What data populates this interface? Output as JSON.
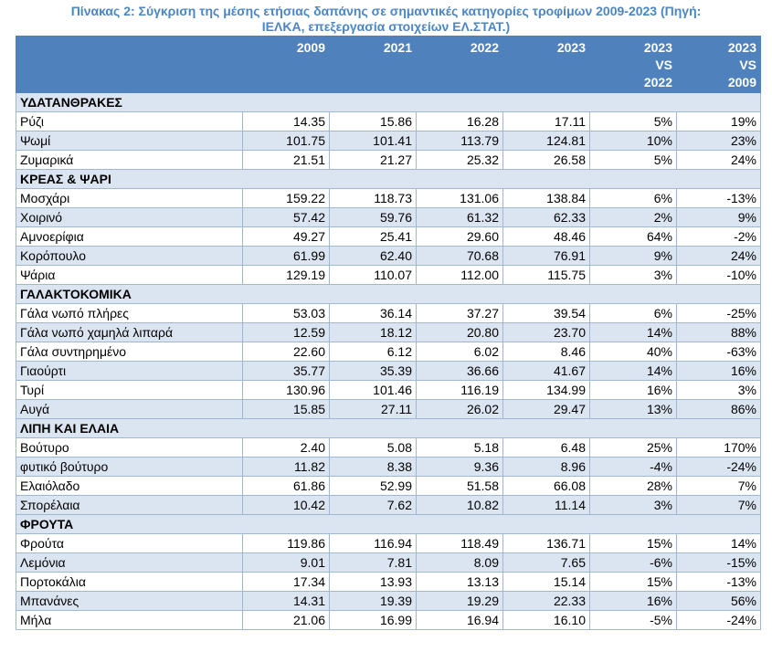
{
  "caption": {
    "line1": "Πίνακας 2: Σύγκριση της μέσης ετήσιας δαπάνης σε σημαντικές κατηγορίες τροφίμων 2009-2023 (Πηγή:",
    "line2": "ΙΕΛΚΑ, επεξεργασία στοιχείων ΕΛ.ΣΤΑΤ.)"
  },
  "headers": {
    "y2009": "2009",
    "y2021": "2021",
    "y2022": "2022",
    "y2023": "2023",
    "vs2022": [
      "2023",
      "VS",
      "2022"
    ],
    "vs2009": [
      "2023",
      "VS",
      "2009"
    ]
  },
  "rows": [
    {
      "type": "cat",
      "label": "ΥΔΑΤΑΝΘΡΑΚΕΣ"
    },
    {
      "type": "item",
      "label": "Ρύζι",
      "v2009": "14.35",
      "v2021": "15.86",
      "v2022": "16.28",
      "v2023": "17.11",
      "vs2022": "5%",
      "vs2009": "19%"
    },
    {
      "type": "item",
      "label": "Ψωμί",
      "v2009": "101.75",
      "v2021": "101.41",
      "v2022": "113.79",
      "v2023": "124.81",
      "vs2022": "10%",
      "vs2009": "23%"
    },
    {
      "type": "item",
      "label": "Ζυμαρικά",
      "v2009": "21.51",
      "v2021": "21.27",
      "v2022": "25.32",
      "v2023": "26.58",
      "vs2022": "5%",
      "vs2009": "24%"
    },
    {
      "type": "cat",
      "label": "ΚΡΕΑΣ & ΨΑΡΙ"
    },
    {
      "type": "item",
      "label": "Μοσχάρι",
      "v2009": "159.22",
      "v2021": "118.73",
      "v2022": "131.06",
      "v2023": "138.84",
      "vs2022": "6%",
      "vs2009": "-13%"
    },
    {
      "type": "item",
      "label": "Χοιρινό",
      "v2009": "57.42",
      "v2021": "59.76",
      "v2022": "61.32",
      "v2023": "62.33",
      "vs2022": "2%",
      "vs2009": "9%"
    },
    {
      "type": "item",
      "label": "Αμνοερίφια",
      "v2009": "49.27",
      "v2021": "25.41",
      "v2022": "29.60",
      "v2023": "48.46",
      "vs2022": "64%",
      "vs2009": "-2%"
    },
    {
      "type": "item",
      "label": "Κορόπουλο",
      "v2009": "61.99",
      "v2021": "62.40",
      "v2022": "70.68",
      "v2023": "76.91",
      "vs2022": "9%",
      "vs2009": "24%"
    },
    {
      "type": "item",
      "label": "Ψάρια",
      "v2009": "129.19",
      "v2021": "110.07",
      "v2022": "112.00",
      "v2023": "115.75",
      "vs2022": "3%",
      "vs2009": "-10%"
    },
    {
      "type": "cat",
      "label": "ΓΑΛΑΚΤΟΚΟΜΙΚΑ"
    },
    {
      "type": "item",
      "label": "Γάλα νωπό πλήρες",
      "v2009": "53.03",
      "v2021": "36.14",
      "v2022": "37.27",
      "v2023": "39.54",
      "vs2022": "6%",
      "vs2009": "-25%"
    },
    {
      "type": "item",
      "label": "Γάλα νωπό χαμηλά λιπαρά",
      "v2009": "12.59",
      "v2021": "18.12",
      "v2022": "20.80",
      "v2023": "23.70",
      "vs2022": "14%",
      "vs2009": "88%"
    },
    {
      "type": "item",
      "label": "Γάλα συντηρημένο",
      "v2009": "22.60",
      "v2021": "6.12",
      "v2022": "6.02",
      "v2023": "8.46",
      "vs2022": "40%",
      "vs2009": "-63%"
    },
    {
      "type": "item",
      "label": "Γιαούρτι",
      "v2009": "35.77",
      "v2021": "35.39",
      "v2022": "36.66",
      "v2023": "41.67",
      "vs2022": "14%",
      "vs2009": "16%"
    },
    {
      "type": "item",
      "label": "Τυρί",
      "v2009": "130.96",
      "v2021": "101.46",
      "v2022": "116.19",
      "v2023": "134.99",
      "vs2022": "16%",
      "vs2009": "3%"
    },
    {
      "type": "item",
      "label": "Αυγά",
      "v2009": "15.85",
      "v2021": "27.11",
      "v2022": "26.02",
      "v2023": "29.47",
      "vs2022": "13%",
      "vs2009": "86%"
    },
    {
      "type": "cat",
      "label": "ΛΙΠΗ ΚΑΙ ΕΛΑΙΑ"
    },
    {
      "type": "item",
      "label": "Βούτυρο",
      "v2009": "2.40",
      "v2021": "5.08",
      "v2022": "5.18",
      "v2023": "6.48",
      "vs2022": "25%",
      "vs2009": "170%"
    },
    {
      "type": "item",
      "label": "φυτικό βούτυρο",
      "v2009": "11.82",
      "v2021": "8.38",
      "v2022": "9.36",
      "v2023": "8.96",
      "vs2022": "-4%",
      "vs2009": "-24%"
    },
    {
      "type": "item",
      "label": "Ελαιόλαδο",
      "v2009": "61.86",
      "v2021": "52.99",
      "v2022": "51.58",
      "v2023": "66.08",
      "vs2022": "28%",
      "vs2009": "7%"
    },
    {
      "type": "item",
      "label": "Σπορέλαια",
      "v2009": "10.42",
      "v2021": "7.62",
      "v2022": "10.82",
      "v2023": "11.14",
      "vs2022": "3%",
      "vs2009": "7%"
    },
    {
      "type": "cat",
      "label": "ΦΡΟΥΤΑ"
    },
    {
      "type": "item",
      "label": "Φρούτα",
      "v2009": "119.86",
      "v2021": "116.94",
      "v2022": "118.49",
      "v2023": "136.71",
      "vs2022": "15%",
      "vs2009": "14%"
    },
    {
      "type": "item",
      "label": "Λεμόνια",
      "v2009": "9.01",
      "v2021": "7.81",
      "v2022": "8.09",
      "v2023": "7.65",
      "vs2022": "-6%",
      "vs2009": "-15%"
    },
    {
      "type": "item",
      "label": "Πορτοκάλια",
      "v2009": "17.34",
      "v2021": "13.93",
      "v2022": "13.13",
      "v2023": "15.14",
      "vs2022": "15%",
      "vs2009": "-13%"
    },
    {
      "type": "item",
      "label": "Μπανάνες",
      "v2009": "14.31",
      "v2021": "19.39",
      "v2022": "19.29",
      "v2023": "22.33",
      "vs2022": "16%",
      "vs2009": "56%"
    },
    {
      "type": "item",
      "label": "Μήλα",
      "v2009": "21.06",
      "v2021": "16.99",
      "v2022": "16.94",
      "v2023": "16.10",
      "vs2022": "-5%",
      "vs2009": "-24%"
    }
  ]
}
